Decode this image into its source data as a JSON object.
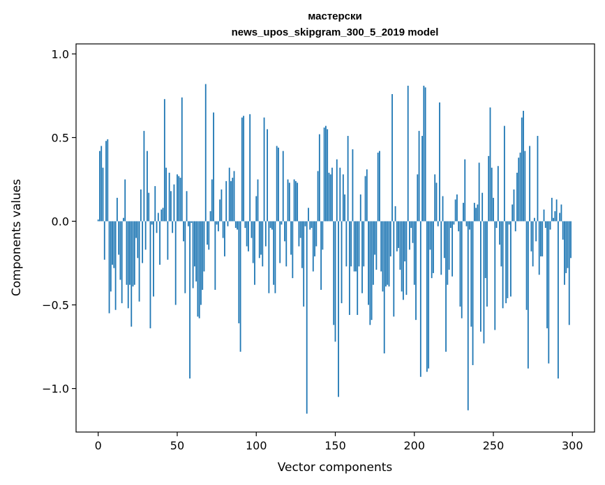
{
  "chart_data": {
    "type": "bar",
    "title_line1": "мастерски",
    "title_line2": "news_upos_skipgram_300_5_2019 model",
    "xlabel": "Vector components",
    "ylabel": "Components values",
    "xlim": [
      -14,
      314
    ],
    "ylim": [
      -1.26,
      1.06
    ],
    "xticks": [
      0,
      50,
      100,
      150,
      200,
      250,
      300
    ],
    "xtick_labels": [
      "0",
      "50",
      "100",
      "150",
      "200",
      "250",
      "300"
    ],
    "yticks": [
      -1.0,
      -0.5,
      0.0,
      0.5,
      1.0
    ],
    "ytick_labels": [
      "−1.0",
      "−0.5",
      "0.0",
      "0.5",
      "1.0"
    ],
    "grid": false,
    "bar_color": "#1f77b4",
    "values": [
      0.01,
      0.42,
      0.45,
      0.32,
      -0.23,
      0.48,
      0.49,
      -0.55,
      -0.42,
      -0.26,
      -0.28,
      -0.53,
      0.14,
      -0.2,
      -0.35,
      -0.49,
      0.02,
      0.25,
      -0.38,
      -0.52,
      -0.38,
      -0.63,
      -0.39,
      -0.38,
      -0.1,
      -0.22,
      -0.48,
      0.19,
      -0.25,
      0.54,
      -0.17,
      0.42,
      0.17,
      -0.64,
      -0.02,
      -0.45,
      0.21,
      -0.07,
      0.05,
      -0.26,
      0.07,
      0.08,
      0.73,
      0.32,
      -0.23,
      0.29,
      0.18,
      -0.07,
      0.22,
      -0.5,
      0.28,
      0.27,
      0.26,
      0.74,
      -0.12,
      -0.43,
      0.18,
      -0.03,
      -0.94,
      -0.01,
      -0.4,
      -0.27,
      -0.36,
      -0.57,
      -0.58,
      -0.5,
      -0.41,
      -0.3,
      0.82,
      -0.14,
      -0.17,
      0.06,
      0.25,
      0.65,
      -0.41,
      -0.02,
      -0.06,
      0.13,
      0.19,
      -0.1,
      -0.21,
      0.24,
      -0.03,
      0.32,
      0.24,
      0.26,
      0.3,
      -0.04,
      -0.05,
      -0.61,
      -0.78,
      0.62,
      0.63,
      -0.04,
      -0.15,
      -0.18,
      0.64,
      -0.1,
      -0.25,
      -0.38,
      0.15,
      0.25,
      -0.22,
      -0.2,
      -0.27,
      0.62,
      -0.15,
      0.55,
      -0.43,
      -0.04,
      -0.05,
      -0.38,
      -0.43,
      0.45,
      0.44,
      -0.25,
      -0.02,
      0.42,
      -0.12,
      -0.27,
      0.25,
      0.23,
      -0.2,
      -0.34,
      0.25,
      0.24,
      0.23,
      -0.15,
      -0.1,
      -0.28,
      -0.51,
      -0.03,
      -1.15,
      0.08,
      -0.05,
      -0.04,
      -0.3,
      -0.21,
      -0.15,
      0.3,
      0.52,
      -0.41,
      -0.17,
      0.56,
      0.57,
      0.55,
      0.29,
      0.28,
      0.32,
      -0.62,
      -0.72,
      0.37,
      -1.05,
      0.32,
      -0.49,
      0.28,
      0.16,
      -0.27,
      0.51,
      -0.56,
      -0.27,
      0.43,
      -0.3,
      -0.3,
      -0.56,
      -0.27,
      0.16,
      -0.43,
      -0.27,
      0.27,
      0.31,
      -0.5,
      -0.62,
      -0.59,
      -0.38,
      -0.2,
      -0.29,
      0.41,
      0.42,
      -0.3,
      -0.42,
      -0.79,
      -0.39,
      -0.38,
      -0.39,
      -0.21,
      0.76,
      -0.57,
      0.09,
      -0.18,
      -0.16,
      -0.29,
      -0.42,
      -0.47,
      -0.24,
      -0.44,
      0.81,
      -0.17,
      -0.04,
      -0.13,
      -0.38,
      -0.59,
      0.28,
      0.54,
      -0.93,
      0.51,
      0.81,
      0.8,
      -0.9,
      -0.88,
      -0.17,
      -0.34,
      -0.31,
      0.28,
      0.23,
      -0.03,
      0.71,
      -0.32,
      0.15,
      -0.22,
      -0.78,
      -0.38,
      -0.29,
      -0.04,
      -0.33,
      -0.02,
      0.13,
      0.16,
      -0.06,
      -0.51,
      -0.58,
      0.11,
      0.37,
      -0.03,
      -1.13,
      -0.05,
      -0.63,
      -0.86,
      0.11,
      0.08,
      0.1,
      0.35,
      -0.66,
      0.17,
      -0.73,
      -0.34,
      -0.51,
      0.39,
      0.68,
      0.32,
      0.14,
      -0.65,
      -0.04,
      0.33,
      -0.14,
      -0.27,
      -0.52,
      0.57,
      -0.49,
      -0.46,
      -0.02,
      -0.45,
      0.1,
      0.19,
      -0.06,
      0.29,
      0.38,
      0.41,
      0.62,
      0.66,
      0.42,
      -0.53,
      -0.88,
      0.45,
      -0.18,
      -0.27,
      0.02,
      -0.12,
      0.51,
      -0.32,
      -0.21,
      -0.21,
      0.07,
      -0.04,
      -0.64,
      -0.85,
      -0.05,
      0.14,
      0.02,
      0.06,
      0.13,
      -0.94,
      0.05,
      0.1,
      -0.11,
      -0.38,
      -0.31,
      -0.28,
      -0.62,
      -0.22
    ]
  }
}
